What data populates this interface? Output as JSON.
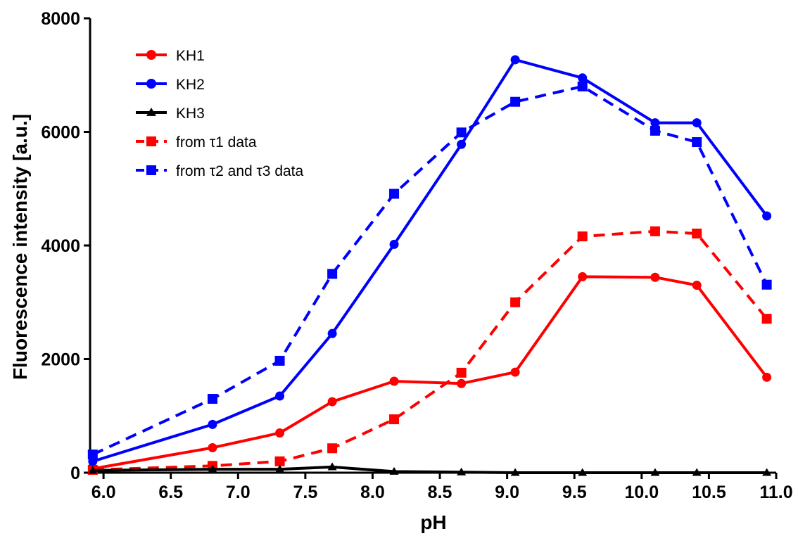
{
  "chart_data": {
    "type": "line",
    "xlabel": "pH",
    "ylabel": "Fluorescence intensity [a.u.]",
    "xlim": [
      5.9,
      11.0
    ],
    "ylim": [
      0,
      8000
    ],
    "x_ticks": [
      "6.0",
      "6.5",
      "7.0",
      "7.5",
      "8.0",
      "8.5",
      "9.0",
      "9.5",
      "10.0",
      "10.5",
      "11.0"
    ],
    "y_ticks": [
      "0",
      "2000",
      "4000",
      "6000",
      "8000"
    ],
    "grid": false,
    "legend_position": "top-left",
    "series": [
      {
        "name": "KH1",
        "color": "#ff0000",
        "line": "solid",
        "marker": "circle",
        "x": [
          5.92,
          6.81,
          7.31,
          7.7,
          8.16,
          8.66,
          9.06,
          9.56,
          10.1,
          10.41,
          10.93
        ],
        "y": [
          70,
          440,
          700,
          1250,
          1610,
          1570,
          1770,
          3450,
          3440,
          3300,
          1680
        ]
      },
      {
        "name": "KH2",
        "color": "#0000ff",
        "line": "solid",
        "marker": "circle",
        "x": [
          5.92,
          6.81,
          7.31,
          7.7,
          8.16,
          8.66,
          9.06,
          9.56,
          10.1,
          10.41,
          10.93
        ],
        "y": [
          200,
          850,
          1350,
          2450,
          4020,
          5780,
          7270,
          6950,
          6160,
          6160,
          4520
        ]
      },
      {
        "name": "KH3",
        "color": "#000000",
        "line": "solid",
        "marker": "triangle",
        "x": [
          5.92,
          6.81,
          7.31,
          7.7,
          8.16,
          8.66,
          9.06,
          9.56,
          10.1,
          10.41,
          10.93
        ],
        "y": [
          40,
          60,
          60,
          100,
          20,
          10,
          0,
          0,
          0,
          0,
          0
        ]
      },
      {
        "name": "from τ1 data",
        "color": "#ff0000",
        "line": "dashed",
        "marker": "square",
        "x": [
          5.92,
          6.81,
          7.31,
          7.7,
          8.16,
          8.66,
          9.06,
          9.56,
          10.1,
          10.41,
          10.93
        ],
        "y": [
          50,
          120,
          200,
          430,
          940,
          1760,
          3000,
          4160,
          4250,
          4210,
          2710
        ]
      },
      {
        "name": "from τ2 and τ3 data",
        "color": "#0000ff",
        "line": "dashed",
        "marker": "square",
        "x": [
          5.92,
          6.81,
          7.31,
          7.7,
          8.16,
          8.66,
          9.06,
          9.56,
          10.1,
          10.41,
          10.93
        ],
        "y": [
          320,
          1300,
          1970,
          3500,
          4910,
          5990,
          6530,
          6800,
          6020,
          5820,
          3310
        ]
      }
    ]
  }
}
